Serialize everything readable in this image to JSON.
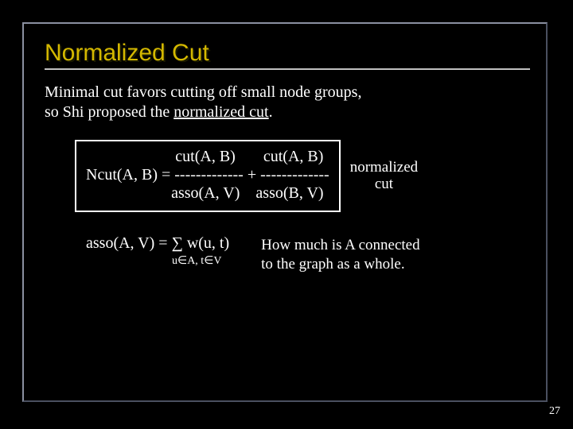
{
  "title": "Normalized Cut",
  "intro_line1": "Minimal cut favors cutting off small node groups,",
  "intro_line2_pre": "so Shi proposed the ",
  "intro_line2_ul": "normalized cut",
  "intro_line2_post": ".",
  "formula": {
    "num1": "cut(A, B)",
    "num2": "cut(A, B)",
    "lhs_line": "Ncut(A, B) = ------------- + -------------",
    "den1": "asso(A, V)",
    "den2": "asso(B, V)"
  },
  "side_label_l1": "normalized",
  "side_label_l2": "cut",
  "asso_def": "asso(A, V) = ∑  w(u, t)",
  "asso_sub": "u∈A, t∈V",
  "asso_desc_l1": "How much is A connected",
  "asso_desc_l2": "to the graph as a whole.",
  "pagenum": "27",
  "colors": {
    "bg": "#000000",
    "title": "#d4b800",
    "rule": "#c0c0c0",
    "text": "#ffffff",
    "border_light": "#8a90a0",
    "border_dark": "#4a5060"
  }
}
